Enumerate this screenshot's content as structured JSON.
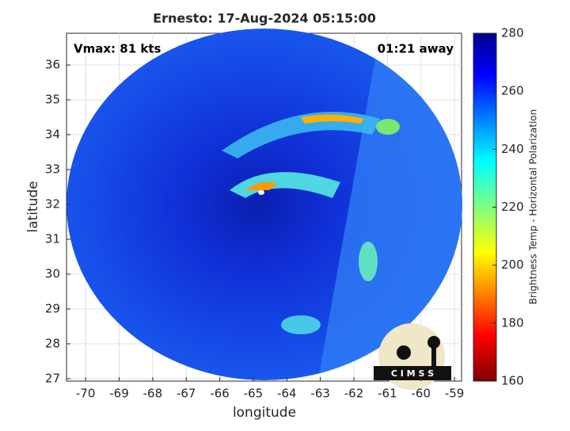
{
  "chart_data": {
    "type": "image",
    "title": "Ernesto: 17-Aug-2024 05:15:00",
    "annotations": [
      "Vmax: 81 kts",
      "01:21 away"
    ],
    "xlabel": "longitude",
    "ylabel": "latitude",
    "xlim": [
      -70.57,
      -58.79
    ],
    "ylim": [
      26.93,
      36.91
    ],
    "xticks": [
      -70,
      -69,
      -68,
      -67,
      -66,
      -65,
      -64,
      -63,
      -62,
      -61,
      -60,
      -59
    ],
    "yticks": [
      27,
      28,
      29,
      30,
      31,
      32,
      33,
      34,
      35,
      36
    ],
    "grid": true,
    "colorbar": {
      "label": "Brightness Temp - Horizontal Polarization",
      "lim": [
        160,
        280
      ],
      "ticks": [
        160,
        180,
        200,
        220,
        240,
        260,
        280
      ],
      "colormap": "jet"
    },
    "logo_text": "C I M S S"
  }
}
